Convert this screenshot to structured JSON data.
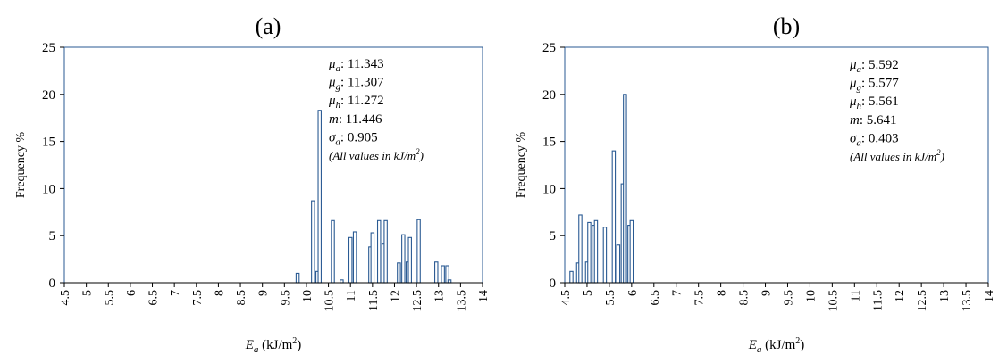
{
  "colors": {
    "bar_stroke": "#2a5a93",
    "bar_fill": "#ffffff",
    "frame": "#2a5a93",
    "text": "#000000"
  },
  "chart_data": [
    {
      "type": "bar",
      "title": "(a)",
      "xlabel": "E_a (kJ/m2)",
      "ylabel": "Frequency %",
      "xlim": [
        4.5,
        14
      ],
      "ylim": [
        0,
        25
      ],
      "grid": false,
      "x_ticks": [
        "4.5",
        "5",
        "5.5",
        "6",
        "6.5",
        "7",
        "7.5",
        "8",
        "8.5",
        "9",
        "9.5",
        "10",
        "10.5",
        "11",
        "11.5",
        "12",
        "12.5",
        "13",
        "13.5",
        "14"
      ],
      "y_ticks": [
        "0",
        "5",
        "10",
        "15",
        "20",
        "25"
      ],
      "bars": [
        {
          "x": 9.8,
          "y": 1.0
        },
        {
          "x": 10.15,
          "y": 8.7
        },
        {
          "x": 10.25,
          "y": 1.2
        },
        {
          "x": 10.3,
          "y": 18.3
        },
        {
          "x": 10.6,
          "y": 6.6
        },
        {
          "x": 10.8,
          "y": 0.3
        },
        {
          "x": 11.0,
          "y": 4.8
        },
        {
          "x": 11.1,
          "y": 5.4
        },
        {
          "x": 11.45,
          "y": 3.8
        },
        {
          "x": 11.5,
          "y": 5.3
        },
        {
          "x": 11.65,
          "y": 6.6
        },
        {
          "x": 11.75,
          "y": 4.1
        },
        {
          "x": 11.8,
          "y": 6.6
        },
        {
          "x": 12.1,
          "y": 2.1
        },
        {
          "x": 12.2,
          "y": 5.1
        },
        {
          "x": 12.3,
          "y": 2.2
        },
        {
          "x": 12.35,
          "y": 4.8
        },
        {
          "x": 12.55,
          "y": 6.7
        },
        {
          "x": 12.95,
          "y": 2.2
        },
        {
          "x": 13.1,
          "y": 1.8
        },
        {
          "x": 13.2,
          "y": 1.8
        },
        {
          "x": 13.25,
          "y": 0.3
        }
      ],
      "stats": [
        {
          "sym": "μ",
          "sub": "a",
          "value": ": 11.343"
        },
        {
          "sym": "μ",
          "sub": "g",
          "value": ": 11.307"
        },
        {
          "sym": "μ",
          "sub": "h",
          "value": ": 11.272"
        },
        {
          "sym": "m",
          "sub": "",
          "value": ": 11.446"
        },
        {
          "sym": "σ",
          "sub": "a",
          "value": ": 0.905"
        }
      ],
      "note": "(All values in kJ/m2)"
    },
    {
      "type": "bar",
      "title": "(b)",
      "xlabel": "E_a (kJ/m2)",
      "ylabel": "Frequency %",
      "xlim": [
        4.5,
        14
      ],
      "ylim": [
        0,
        25
      ],
      "grid": false,
      "x_ticks": [
        "4.5",
        "5",
        "5.5",
        "6",
        "6.5",
        "7",
        "7.5",
        "8",
        "8.5",
        "9",
        "9.5",
        "10",
        "10.5",
        "11",
        "11.5",
        "12",
        "12.5",
        "13",
        "13.5",
        "14"
      ],
      "y_ticks": [
        "0",
        "5",
        "10",
        "15",
        "20",
        "25"
      ],
      "bars": [
        {
          "x": 4.65,
          "y": 1.2
        },
        {
          "x": 4.8,
          "y": 2.1
        },
        {
          "x": 4.85,
          "y": 7.2
        },
        {
          "x": 5.0,
          "y": 2.2
        },
        {
          "x": 5.05,
          "y": 6.4
        },
        {
          "x": 5.15,
          "y": 6.1
        },
        {
          "x": 5.2,
          "y": 6.6
        },
        {
          "x": 5.4,
          "y": 5.9
        },
        {
          "x": 5.6,
          "y": 14.0
        },
        {
          "x": 5.7,
          "y": 4.0
        },
        {
          "x": 5.8,
          "y": 10.5
        },
        {
          "x": 5.85,
          "y": 20.0
        },
        {
          "x": 5.95,
          "y": 6.1
        },
        {
          "x": 6.0,
          "y": 6.6
        }
      ],
      "stats": [
        {
          "sym": "μ",
          "sub": "a",
          "value": ": 5.592"
        },
        {
          "sym": "μ",
          "sub": "g",
          "value": ": 5.577"
        },
        {
          "sym": "μ",
          "sub": "h",
          "value": ": 5.561"
        },
        {
          "sym": "m",
          "sub": "",
          "value": ": 5.641"
        },
        {
          "sym": "σ",
          "sub": "a",
          "value": ": 0.403"
        }
      ],
      "note": "(All values in kJ/m2)"
    }
  ]
}
